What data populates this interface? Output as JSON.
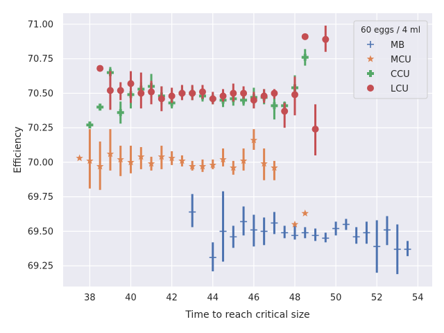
{
  "chart_data": {
    "type": "scatter",
    "xlabel": "Time to reach critical size",
    "ylabel": "Efficiency",
    "xlim": [
      36.7,
      54.7
    ],
    "ylim": [
      69.1,
      71.08
    ],
    "xticks": [
      38,
      40,
      42,
      44,
      46,
      48,
      50,
      52,
      54
    ],
    "yticks": [
      69.25,
      69.5,
      69.75,
      70.0,
      70.25,
      70.5,
      70.75,
      71.0
    ],
    "xtick_labels": [
      "38",
      "40",
      "42",
      "44",
      "46",
      "48",
      "50",
      "52",
      "54"
    ],
    "ytick_labels": [
      "69.25",
      "69.50",
      "69.75",
      "70.00",
      "70.25",
      "70.50",
      "70.75",
      "71.00"
    ],
    "grid": true,
    "background": "#eaeaf2",
    "legend": {
      "title": "60 eggs / 4 ml",
      "placement": "top-right"
    },
    "series": [
      {
        "name": "MB",
        "marker": "plus",
        "color": "#4c72b0",
        "points": [
          {
            "x": 43.0,
            "y": 69.64,
            "lo": 69.53,
            "hi": 69.77
          },
          {
            "x": 44.0,
            "y": 69.31,
            "lo": 69.21,
            "hi": 69.42
          },
          {
            "x": 44.5,
            "y": 69.5,
            "lo": 69.28,
            "hi": 69.79
          },
          {
            "x": 45.0,
            "y": 69.46,
            "lo": 69.38,
            "hi": 69.54
          },
          {
            "x": 45.5,
            "y": 69.57,
            "lo": 69.47,
            "hi": 69.68
          },
          {
            "x": 46.0,
            "y": 69.51,
            "lo": 69.39,
            "hi": 69.62
          },
          {
            "x": 46.5,
            "y": 69.5,
            "lo": 69.4,
            "hi": 69.6
          },
          {
            "x": 47.0,
            "y": 69.56,
            "lo": 69.48,
            "hi": 69.64
          },
          {
            "x": 47.5,
            "y": 69.49,
            "lo": 69.45,
            "hi": 69.54
          },
          {
            "x": 48.0,
            "y": 69.47,
            "lo": 69.44,
            "hi": 69.54
          },
          {
            "x": 48.5,
            "y": 69.49,
            "lo": 69.45,
            "hi": 69.53
          },
          {
            "x": 49.0,
            "y": 69.47,
            "lo": 69.43,
            "hi": 69.52
          },
          {
            "x": 49.5,
            "y": 69.45,
            "lo": 69.42,
            "hi": 69.49
          },
          {
            "x": 50.0,
            "y": 69.52,
            "lo": 69.47,
            "hi": 69.57
          },
          {
            "x": 50.5,
            "y": 69.55,
            "lo": 69.51,
            "hi": 69.59
          },
          {
            "x": 51.0,
            "y": 69.46,
            "lo": 69.41,
            "hi": 69.53
          },
          {
            "x": 51.5,
            "y": 69.49,
            "lo": 69.41,
            "hi": 69.57
          },
          {
            "x": 52.0,
            "y": 69.39,
            "lo": 69.2,
            "hi": 69.58
          },
          {
            "x": 52.5,
            "y": 69.51,
            "lo": 69.4,
            "hi": 69.61
          },
          {
            "x": 53.0,
            "y": 69.37,
            "lo": 69.19,
            "hi": 69.55
          },
          {
            "x": 53.5,
            "y": 69.37,
            "lo": 69.32,
            "hi": 69.43
          }
        ]
      },
      {
        "name": "MCU",
        "marker": "star",
        "color": "#dd8452",
        "points": [
          {
            "x": 37.5,
            "y": 70.03,
            "lo": 70.03,
            "hi": 70.03
          },
          {
            "x": 38.0,
            "y": 70.01,
            "lo": 69.81,
            "hi": 70.24
          },
          {
            "x": 38.5,
            "y": 69.97,
            "lo": 69.8,
            "hi": 70.15
          },
          {
            "x": 39.0,
            "y": 70.06,
            "lo": 69.94,
            "hi": 70.24
          },
          {
            "x": 39.5,
            "y": 70.02,
            "lo": 69.9,
            "hi": 70.12
          },
          {
            "x": 40.0,
            "y": 70.0,
            "lo": 69.92,
            "hi": 70.12
          },
          {
            "x": 40.5,
            "y": 70.04,
            "lo": 69.95,
            "hi": 70.11
          },
          {
            "x": 41.0,
            "y": 69.99,
            "lo": 69.94,
            "hi": 70.04
          },
          {
            "x": 41.5,
            "y": 70.04,
            "lo": 69.95,
            "hi": 70.12
          },
          {
            "x": 42.0,
            "y": 70.03,
            "lo": 69.98,
            "hi": 70.08
          },
          {
            "x": 42.5,
            "y": 70.01,
            "lo": 69.97,
            "hi": 70.05
          },
          {
            "x": 43.0,
            "y": 69.97,
            "lo": 69.94,
            "hi": 70.01
          },
          {
            "x": 43.5,
            "y": 69.97,
            "lo": 69.93,
            "hi": 70.02
          },
          {
            "x": 44.0,
            "y": 69.98,
            "lo": 69.95,
            "hi": 70.02
          },
          {
            "x": 44.5,
            "y": 70.02,
            "lo": 69.97,
            "hi": 70.1
          },
          {
            "x": 45.0,
            "y": 69.96,
            "lo": 69.91,
            "hi": 70.01
          },
          {
            "x": 45.5,
            "y": 70.01,
            "lo": 69.94,
            "hi": 70.1
          },
          {
            "x": 46.0,
            "y": 70.16,
            "lo": 70.09,
            "hi": 70.24
          },
          {
            "x": 46.5,
            "y": 69.99,
            "lo": 69.87,
            "hi": 70.1
          },
          {
            "x": 47.0,
            "y": 69.96,
            "lo": 69.87,
            "hi": 70.01
          },
          {
            "x": 48.0,
            "y": 69.55,
            "lo": 69.55,
            "hi": 69.55
          },
          {
            "x": 48.5,
            "y": 69.63,
            "lo": 69.63,
            "hi": 69.63
          }
        ]
      },
      {
        "name": "CCU",
        "marker": "cross",
        "color": "#55a868",
        "points": [
          {
            "x": 38.0,
            "y": 70.27,
            "lo": 70.27,
            "hi": 70.27
          },
          {
            "x": 38.5,
            "y": 70.4,
            "lo": 70.4,
            "hi": 70.4
          },
          {
            "x": 39.0,
            "y": 70.65,
            "lo": 70.6,
            "hi": 70.69
          },
          {
            "x": 39.5,
            "y": 70.36,
            "lo": 70.28,
            "hi": 70.44
          },
          {
            "x": 40.0,
            "y": 70.49,
            "lo": 70.39,
            "hi": 70.6
          },
          {
            "x": 40.5,
            "y": 70.53,
            "lo": 70.48,
            "hi": 70.58
          },
          {
            "x": 41.0,
            "y": 70.55,
            "lo": 70.47,
            "hi": 70.64
          },
          {
            "x": 41.5,
            "y": 70.48,
            "lo": 70.42,
            "hi": 70.55
          },
          {
            "x": 42.0,
            "y": 70.43,
            "lo": 70.39,
            "hi": 70.47
          },
          {
            "x": 42.5,
            "y": 70.5,
            "lo": 70.46,
            "hi": 70.55
          },
          {
            "x": 43.0,
            "y": 70.5,
            "lo": 70.45,
            "hi": 70.55
          },
          {
            "x": 43.5,
            "y": 70.48,
            "lo": 70.44,
            "hi": 70.52
          },
          {
            "x": 44.0,
            "y": 70.46,
            "lo": 70.42,
            "hi": 70.5
          },
          {
            "x": 44.5,
            "y": 70.45,
            "lo": 70.4,
            "hi": 70.5
          },
          {
            "x": 45.0,
            "y": 70.46,
            "lo": 70.41,
            "hi": 70.51
          },
          {
            "x": 45.5,
            "y": 70.45,
            "lo": 70.41,
            "hi": 70.5
          },
          {
            "x": 46.0,
            "y": 70.47,
            "lo": 70.41,
            "hi": 70.54
          },
          {
            "x": 46.5,
            "y": 70.47,
            "lo": 70.42,
            "hi": 70.53
          },
          {
            "x": 47.0,
            "y": 70.41,
            "lo": 70.31,
            "hi": 70.52
          },
          {
            "x": 47.5,
            "y": 70.41,
            "lo": 70.37,
            "hi": 70.44
          },
          {
            "x": 48.0,
            "y": 70.54,
            "lo": 70.45,
            "hi": 70.63
          },
          {
            "x": 48.5,
            "y": 70.76,
            "lo": 70.7,
            "hi": 70.82
          }
        ]
      },
      {
        "name": "LCU",
        "marker": "circle",
        "color": "#c44e52",
        "points": [
          {
            "x": 38.5,
            "y": 70.68,
            "lo": 70.68,
            "hi": 70.68
          },
          {
            "x": 39.0,
            "y": 70.52,
            "lo": 70.38,
            "hi": 70.66
          },
          {
            "x": 39.5,
            "y": 70.52,
            "lo": 70.45,
            "hi": 70.58
          },
          {
            "x": 40.0,
            "y": 70.57,
            "lo": 70.43,
            "hi": 70.66
          },
          {
            "x": 40.5,
            "y": 70.5,
            "lo": 70.39,
            "hi": 70.65
          },
          {
            "x": 41.0,
            "y": 70.51,
            "lo": 70.42,
            "hi": 70.59
          },
          {
            "x": 41.5,
            "y": 70.46,
            "lo": 70.37,
            "hi": 70.55
          },
          {
            "x": 42.0,
            "y": 70.48,
            "lo": 70.43,
            "hi": 70.54
          },
          {
            "x": 42.5,
            "y": 70.5,
            "lo": 70.45,
            "hi": 70.56
          },
          {
            "x": 43.0,
            "y": 70.5,
            "lo": 70.45,
            "hi": 70.56
          },
          {
            "x": 43.5,
            "y": 70.51,
            "lo": 70.46,
            "hi": 70.56
          },
          {
            "x": 44.0,
            "y": 70.46,
            "lo": 70.42,
            "hi": 70.51
          },
          {
            "x": 44.5,
            "y": 70.48,
            "lo": 70.44,
            "hi": 70.53
          },
          {
            "x": 45.0,
            "y": 70.5,
            "lo": 70.44,
            "hi": 70.57
          },
          {
            "x": 45.5,
            "y": 70.5,
            "lo": 70.46,
            "hi": 70.55
          },
          {
            "x": 46.0,
            "y": 70.45,
            "lo": 70.39,
            "hi": 70.51
          },
          {
            "x": 46.5,
            "y": 70.48,
            "lo": 70.43,
            "hi": 70.53
          },
          {
            "x": 47.0,
            "y": 70.5,
            "lo": 70.46,
            "hi": 70.53
          },
          {
            "x": 47.5,
            "y": 70.37,
            "lo": 70.25,
            "hi": 70.43
          },
          {
            "x": 48.0,
            "y": 70.49,
            "lo": 70.34,
            "hi": 70.62
          },
          {
            "x": 48.5,
            "y": 70.91,
            "lo": 70.91,
            "hi": 70.91
          },
          {
            "x": 49.0,
            "y": 70.24,
            "lo": 70.05,
            "hi": 70.42
          },
          {
            "x": 49.5,
            "y": 70.89,
            "lo": 70.8,
            "hi": 70.99
          }
        ]
      }
    ]
  }
}
